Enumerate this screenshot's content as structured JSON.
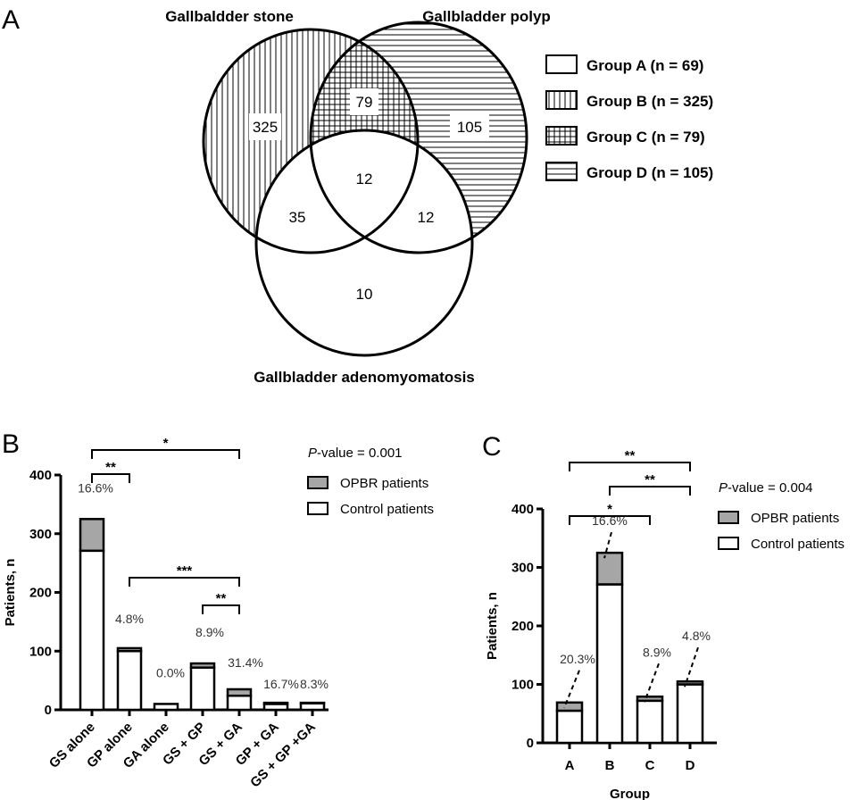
{
  "panels": {
    "a": "A",
    "b": "B",
    "c": "C"
  },
  "chart_data": [
    {
      "type": "venn",
      "sets": [
        "Gallbaldder stone",
        "Gallbladder polyp",
        "Gallbladder adenomyomatosis"
      ],
      "regions": {
        "stone_only": "325",
        "stone_polyp": "79",
        "polyp_only": "105",
        "all_three": "12",
        "stone_adeno": "35",
        "polyp_adeno": "12",
        "adeno_only": "10"
      },
      "legend": [
        {
          "label": "Group A (n = 69)",
          "pattern": "none"
        },
        {
          "label": "Group B (n = 325)",
          "pattern": "vertical-lines"
        },
        {
          "label": "Group C (n = 79)",
          "pattern": "grid"
        },
        {
          "label": "Group D (n = 105)",
          "pattern": "horizontal-lines"
        }
      ],
      "legend_placement": "right"
    },
    {
      "type": "bar",
      "stacked": true,
      "ylabel": "Patients, n",
      "xlabel": "",
      "ylim": [
        0,
        400
      ],
      "yticks": [
        "0",
        "100",
        "200",
        "300",
        "400"
      ],
      "categories": [
        "GS alone",
        "GP alone",
        "GA alone",
        "GS + GP",
        "GS + GA",
        "GP + GA",
        "GS + GP +GA"
      ],
      "series": [
        {
          "name": "Control patients",
          "color": "#ffffff",
          "values": [
            271,
            100,
            10,
            72,
            24,
            10,
            11
          ]
        },
        {
          "name": "OPBR patients",
          "color": "#a6a6a6",
          "values": [
            54,
            5,
            0,
            7,
            11,
            2,
            1
          ]
        }
      ],
      "totals": [
        325,
        105,
        10,
        79,
        35,
        12,
        12
      ],
      "percent_labels": [
        "16.6%",
        "4.8%",
        "0.0%",
        "8.9%",
        "31.4%",
        "16.7%",
        "8.3%"
      ],
      "pvalue_text": "-value = 0.001",
      "pvalue_prefix": "P",
      "significance": [
        {
          "from": 0,
          "to": 4,
          "stars": "*"
        },
        {
          "from": 0,
          "to": 1,
          "stars": "**"
        },
        {
          "from": 1,
          "to": 4,
          "stars": "***"
        },
        {
          "from": 3,
          "to": 4,
          "stars": "**"
        }
      ],
      "legend_placement": "top-right"
    },
    {
      "type": "bar",
      "stacked": true,
      "ylabel": "Patients, n",
      "xlabel": "Group",
      "ylim": [
        0,
        400
      ],
      "yticks": [
        "0",
        "100",
        "200",
        "300",
        "400"
      ],
      "categories": [
        "A",
        "B",
        "C",
        "D"
      ],
      "series": [
        {
          "name": "Control patients",
          "color": "#ffffff",
          "values": [
            55,
            271,
            72,
            100
          ]
        },
        {
          "name": "OPBR patients",
          "color": "#a6a6a6",
          "values": [
            14,
            54,
            7,
            5
          ]
        }
      ],
      "totals": [
        69,
        325,
        79,
        105
      ],
      "percent_labels": [
        "20.3%",
        "16.6%",
        "8.9%",
        "4.8%"
      ],
      "pvalue_text": "-value = 0.004",
      "pvalue_prefix": "P",
      "significance": [
        {
          "from": 0,
          "to": 3,
          "stars": "**"
        },
        {
          "from": 1,
          "to": 3,
          "stars": "**"
        },
        {
          "from": 0,
          "to": 2,
          "stars": "*"
        }
      ],
      "legend_placement": "top-right"
    }
  ]
}
